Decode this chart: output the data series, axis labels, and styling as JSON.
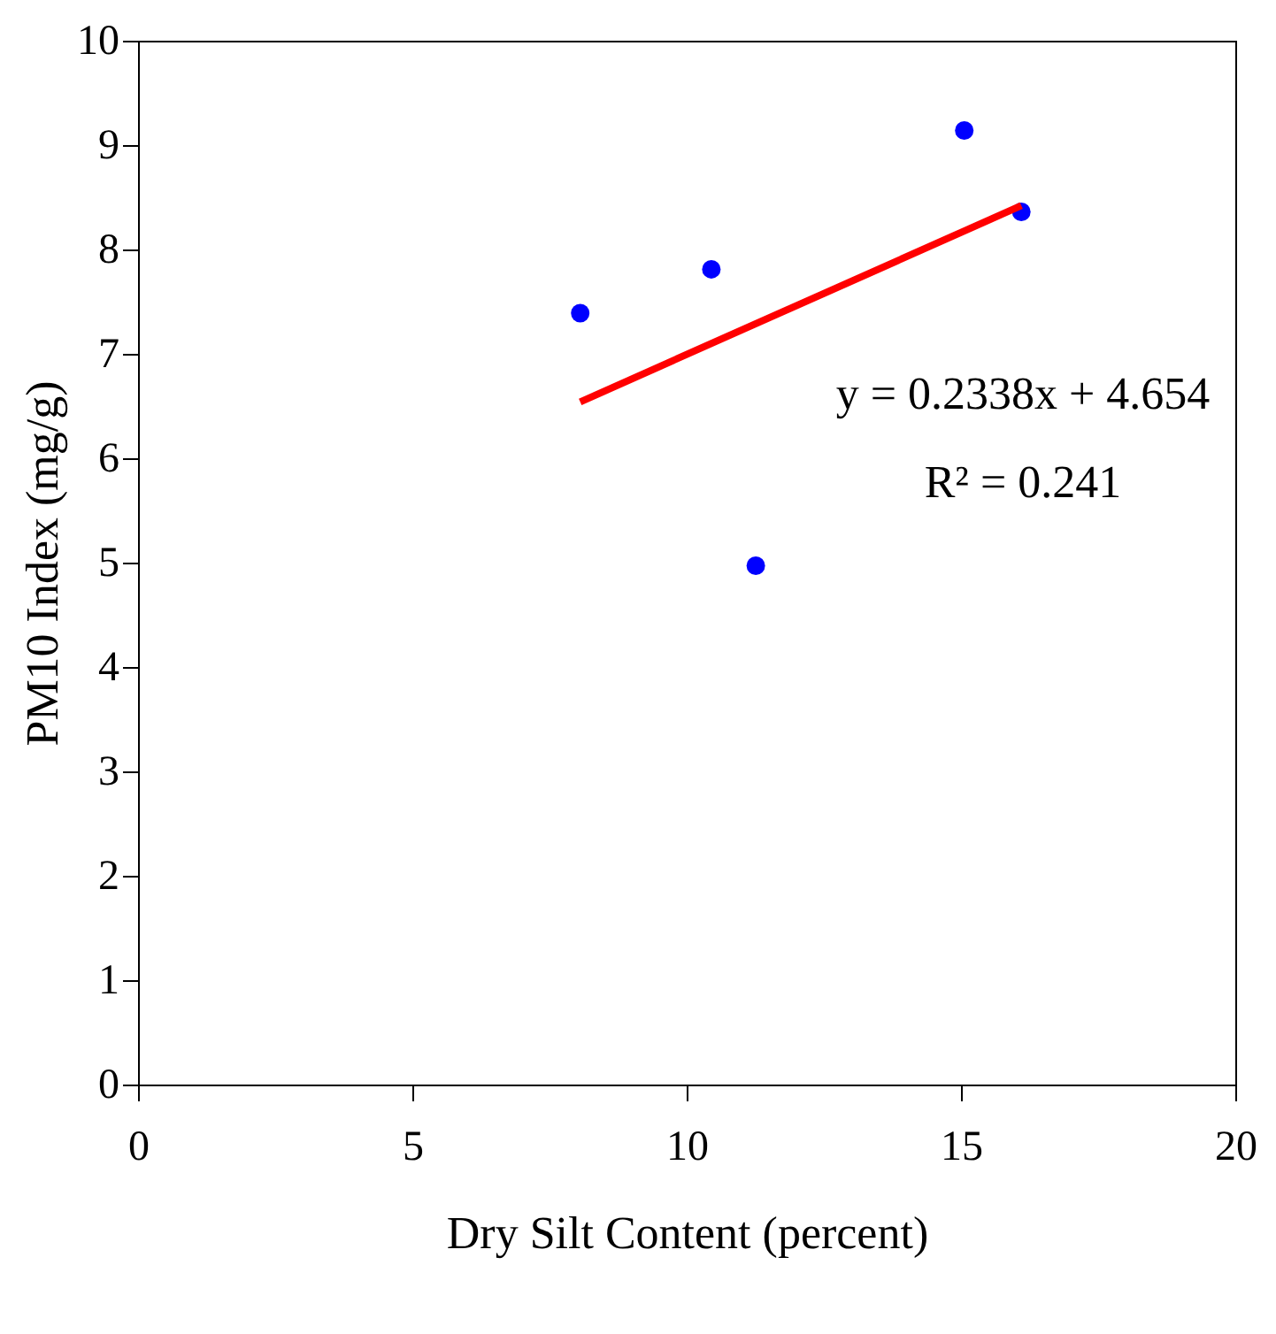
{
  "chart_data": {
    "type": "scatter",
    "xlabel": "Dry Silt Content (percent)",
    "ylabel": "PM10 Index (mg/g)",
    "xlim": [
      0,
      20
    ],
    "xticks": [
      0,
      5,
      10,
      15,
      20
    ],
    "ylim": [
      0,
      10
    ],
    "yticks": [
      0,
      1,
      2,
      3,
      4,
      5,
      6,
      7,
      8,
      9,
      10
    ],
    "grid": false,
    "series": [
      {
        "marker": "circle",
        "color": "#0000ff",
        "x": [
          8.06,
          10.45,
          11.26,
          15.06,
          16.1
        ],
        "values": [
          7.39,
          7.81,
          4.97,
          9.14,
          8.36
        ]
      },
      {
        "type": "line",
        "color": "#ff0000",
        "x": [
          8.06,
          16.1
        ],
        "values": [
          6.54,
          8.42
        ]
      }
    ],
    "annotations": [
      "y = 0.2338x + 4.654",
      "R² = 0.241"
    ]
  }
}
